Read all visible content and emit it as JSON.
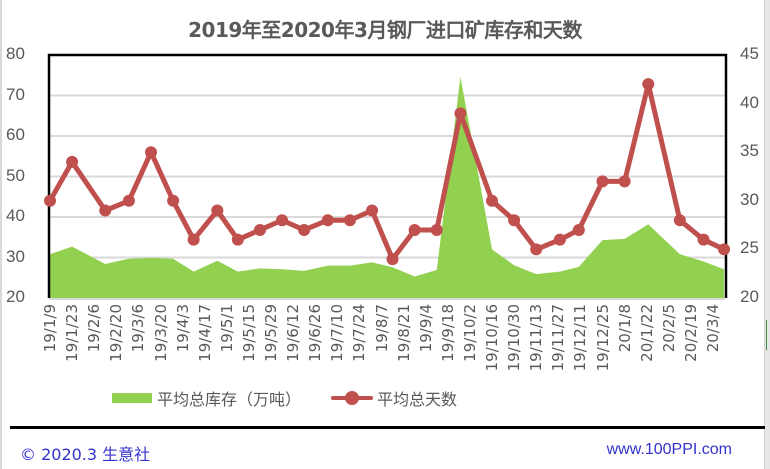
{
  "title": "2019年至2020年3月钢厂进口矿库存和天数",
  "legend": {
    "area_label": "平均总库存（万吨）",
    "line_label": "平均总天数"
  },
  "footer": {
    "copyright": "© 2020.3 生意社",
    "website": "www.100PPI.com"
  },
  "colors": {
    "area": "#92d050",
    "line": "#c0504d",
    "grid": "#d9d9d9",
    "axis_text": "#595959",
    "footer_text": "#3333cc"
  },
  "chart_data": {
    "type": "area+line",
    "title": "2019年至2020年3月钢厂进口矿库存和天数",
    "xlabel": "",
    "ylabel_left": "平均总库存（万吨）",
    "ylabel_right": "平均总天数",
    "ylim_left": [
      20,
      80
    ],
    "yticks_left": [
      20,
      30,
      40,
      50,
      60,
      70,
      80
    ],
    "ylim_right": [
      20,
      45
    ],
    "yticks_right": [
      20,
      25,
      30,
      35,
      40,
      45
    ],
    "grid": true,
    "legend_position": "bottom",
    "x_axis_type": "date",
    "x_tick_labels": [
      "19/1/9",
      "19/1/23",
      "19/2/6",
      "19/2/20",
      "19/3/6",
      "19/3/20",
      "19/4/3",
      "19/4/17",
      "19/5/1",
      "19/5/15",
      "19/5/29",
      "19/6/12",
      "19/6/26",
      "19/7/10",
      "19/7/24",
      "19/8/7",
      "19/8/21",
      "19/9/4",
      "19/9/18",
      "19/10/2",
      "19/10/16",
      "19/10/30",
      "19/11/13",
      "19/11/27",
      "19/12/11",
      "19/12/25",
      "20/1/8",
      "20/1/22",
      "20/2/5",
      "20/2/19",
      "20/3/4"
    ],
    "x_tick_interval_days": 14,
    "x_axis_span_days": 427,
    "x": [
      "19/1/9",
      "19/1/23",
      "19/2/13",
      "19/2/27",
      "19/3/13",
      "19/3/27",
      "19/4/10",
      "19/4/24",
      "19/5/8",
      "19/5/22",
      "19/6/5",
      "19/6/19",
      "19/7/3",
      "19/7/17",
      "19/7/31",
      "19/8/14",
      "19/8/28",
      "19/9/11",
      "19/9/26",
      "19/10/16",
      "19/10/30",
      "19/11/13",
      "19/11/27",
      "19/12/10",
      "19/12/25",
      "20/1/8",
      "20/1/23",
      "20/2/12",
      "20/2/26",
      "20/3/11"
    ],
    "x_day_offsets": [
      0,
      14,
      35,
      50,
      64,
      78,
      91,
      106,
      119,
      133,
      147,
      161,
      176,
      190,
      204,
      217,
      231,
      245,
      260,
      280,
      294,
      308,
      323,
      335,
      350,
      364,
      379,
      399,
      414,
      427
    ],
    "series": [
      {
        "name": "平均总库存（万吨）",
        "type": "area",
        "axis": "left",
        "color": "#92d050",
        "values": [
          30.8,
          32.7,
          28.4,
          29.7,
          29.9,
          29.7,
          26.5,
          29.2,
          26.5,
          27.3,
          27.1,
          26.7,
          28.0,
          28.0,
          28.8,
          27.6,
          25.3,
          26.9,
          74.6,
          32.0,
          28.1,
          25.9,
          26.5,
          27.7,
          34.3,
          34.6,
          38.2,
          30.8,
          29.0,
          27.1
        ]
      },
      {
        "name": "平均总天数",
        "type": "line",
        "axis": "right",
        "color": "#c0504d",
        "markers": true,
        "values": [
          30,
          34,
          29,
          30,
          35,
          30,
          26,
          29,
          26,
          27,
          28,
          27,
          28,
          28,
          29,
          24,
          27,
          27,
          39,
          30,
          28,
          25,
          26,
          27,
          32,
          32,
          42,
          28,
          26,
          25
        ]
      }
    ]
  }
}
